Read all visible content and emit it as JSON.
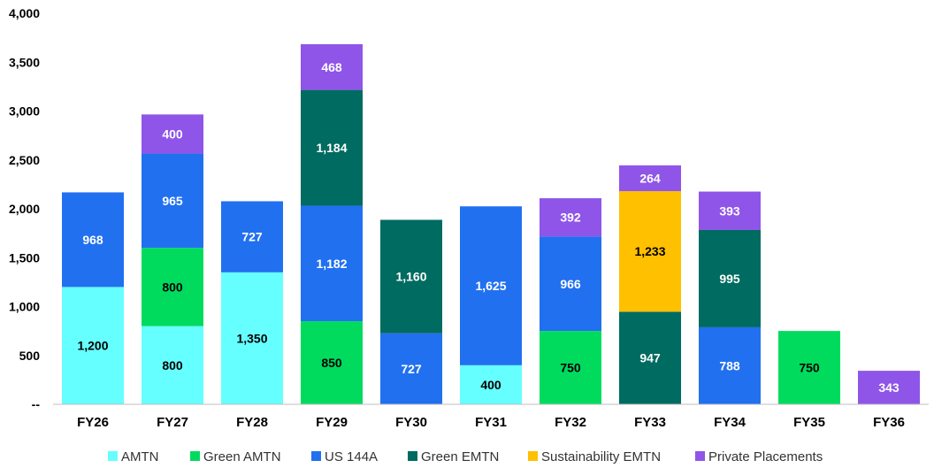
{
  "chart_data": {
    "type": "bar",
    "stacked": true,
    "categories": [
      "FY26",
      "FY27",
      "FY28",
      "FY29",
      "FY30",
      "FY31",
      "FY32",
      "FY33",
      "FY34",
      "FY35",
      "FY36"
    ],
    "ylim": [
      0,
      4000
    ],
    "yticks": [
      0,
      500,
      1000,
      1500,
      2000,
      2500,
      3000,
      3500,
      4000
    ],
    "ytick_labels": [
      "--",
      "500",
      "1,000",
      "1,500",
      "2,000",
      "2,500",
      "3,000",
      "3,500",
      "4,000"
    ],
    "grid": false,
    "legend_position": "bottom",
    "series": [
      {
        "name": "AMTN",
        "color": "#66FFFF",
        "label_color": "#000000",
        "values": [
          1200,
          800,
          1350,
          0,
          0,
          400,
          0,
          0,
          0,
          0,
          0
        ],
        "labels": [
          "1,200",
          "800",
          "1,350",
          "",
          "",
          "400",
          "",
          "",
          "",
          "",
          ""
        ]
      },
      {
        "name": "Green AMTN",
        "color": "#00DB5E",
        "label_color": "#000000",
        "values": [
          0,
          800,
          0,
          850,
          0,
          0,
          750,
          0,
          0,
          750,
          0
        ],
        "labels": [
          "",
          "800",
          "",
          "850",
          "",
          "",
          "750",
          "",
          "",
          "750",
          ""
        ]
      },
      {
        "name": "US 144A",
        "color": "#2170F0",
        "label_color": "#FFFFFF",
        "values": [
          968,
          965,
          727,
          1182,
          727,
          1625,
          966,
          0,
          788,
          0,
          0
        ],
        "labels": [
          "968",
          "965",
          "727",
          "1,182",
          "727",
          "1,625",
          "966",
          "",
          "788",
          "",
          ""
        ]
      },
      {
        "name": "Green EMTN",
        "color": "#006B61",
        "label_color": "#FFFFFF",
        "values": [
          0,
          0,
          0,
          1184,
          1160,
          0,
          0,
          947,
          995,
          0,
          0
        ],
        "labels": [
          "",
          "",
          "",
          "1,184",
          "1,160",
          "",
          "",
          "947",
          "995",
          "",
          ""
        ]
      },
      {
        "name": "Sustainability EMTN",
        "color": "#FFC000",
        "label_color": "#000000",
        "values": [
          0,
          0,
          0,
          0,
          0,
          0,
          0,
          1233,
          0,
          0,
          0
        ],
        "labels": [
          "",
          "",
          "",
          "",
          "",
          "",
          "",
          "1,233",
          "",
          "",
          ""
        ]
      },
      {
        "name": "Private Placements",
        "color": "#8F55E8",
        "label_color": "#FFFFFF",
        "values": [
          0,
          400,
          0,
          468,
          0,
          0,
          392,
          264,
          393,
          0,
          343
        ],
        "labels": [
          "",
          "400",
          "",
          "468",
          "",
          "",
          "392",
          "264",
          "393",
          "",
          "343"
        ]
      }
    ]
  }
}
